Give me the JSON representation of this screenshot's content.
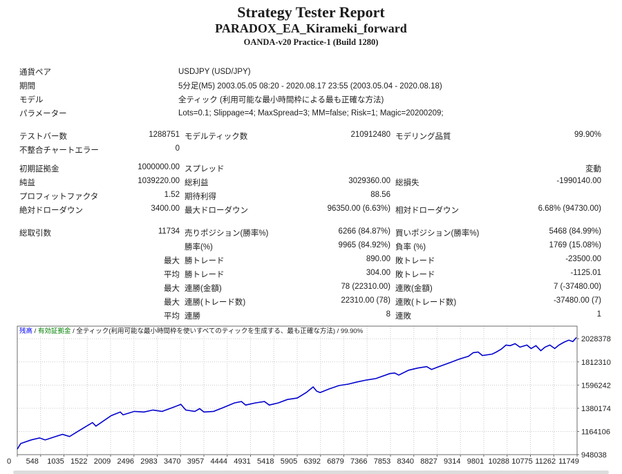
{
  "header": {
    "title": "Strategy Tester Report",
    "ea_name": "PARADOX_EA_Kirameki_forward",
    "server": "OANDA-v20 Practice-1 (Build 1280)"
  },
  "report": {
    "sections": [
      {
        "rows": [
          {
            "wide": true,
            "label": "通貨ペア",
            "value": "USDJPY (USD/JPY)"
          },
          {
            "wide": true,
            "label": "期間",
            "value": "5分足(M5) 2003.05.05 08:20 - 2020.08.17 23:55 (2003.05.04 - 2020.08.18)"
          },
          {
            "wide": true,
            "label": "モデル",
            "value": "全ティック (利用可能な最小時間枠による最も正確な方法)"
          },
          {
            "wide": true,
            "label": "パラメーター",
            "value": "Lots=0.1; Slippage=4; MaxSpread=3; MM=false; Risk=1; Magic=20200209;"
          }
        ]
      },
      {
        "rows": [
          {
            "cols": [
              [
                "テストバー数",
                "1288751"
              ],
              [
                "モデルティック数",
                "210912480"
              ],
              [
                "モデリング品質",
                "99.90%"
              ]
            ]
          },
          {
            "cols": [
              [
                "不整合チャートエラー",
                "0"
              ],
              [
                "",
                ""
              ],
              [
                "",
                ""
              ]
            ]
          }
        ]
      },
      {
        "rows": [
          {
            "cols": [
              [
                "初期証拠金",
                "1000000.00"
              ],
              [
                "スプレッド",
                ""
              ],
              [
                "",
                "変動"
              ]
            ]
          },
          {
            "cols": [
              [
                "純益",
                "1039220.00"
              ],
              [
                "総利益",
                "3029360.00"
              ],
              [
                "総損失",
                "-1990140.00"
              ]
            ]
          },
          {
            "cols": [
              [
                "プロフィットファクタ",
                "1.52"
              ],
              [
                "期待利得",
                "88.56"
              ],
              [
                "",
                ""
              ]
            ]
          },
          {
            "cols": [
              [
                "絶対ドローダウン",
                "3400.00"
              ],
              [
                "最大ドローダウン",
                "96350.00 (6.63%)"
              ],
              [
                "相対ドローダウン",
                "6.68% (94730.00)"
              ]
            ]
          }
        ]
      },
      {
        "rows": [
          {
            "cols": [
              [
                "総取引数",
                "11734"
              ],
              [
                "売りポジション(勝率%)",
                "6266 (84.87%)"
              ],
              [
                "買いポジション(勝率%)",
                "5468 (84.99%)"
              ]
            ]
          },
          {
            "cols": [
              [
                "",
                ""
              ],
              [
                "勝率(%)",
                "9965 (84.92%)"
              ],
              [
                "負率 (%)",
                "1769 (15.08%)"
              ]
            ]
          },
          {
            "cols": [
              [
                "",
                "最大"
              ],
              [
                "勝トレード",
                "890.00"
              ],
              [
                "敗トレード",
                "-23500.00"
              ]
            ]
          },
          {
            "cols": [
              [
                "",
                "平均"
              ],
              [
                "勝トレード",
                "304.00"
              ],
              [
                "敗トレード",
                "-1125.01"
              ]
            ]
          },
          {
            "cols": [
              [
                "",
                "最大"
              ],
              [
                "連勝(金額)",
                "78 (22310.00)"
              ],
              [
                "連敗(金額)",
                "7 (-37480.00)"
              ]
            ]
          },
          {
            "cols": [
              [
                "",
                "最大"
              ],
              [
                "連勝(トレード数)",
                "22310.00 (78)"
              ],
              [
                "連敗(トレード数)",
                "-37480.00 (7)"
              ]
            ]
          },
          {
            "cols": [
              [
                "",
                "平均"
              ],
              [
                "連勝",
                "8"
              ],
              [
                "連敗",
                "1"
              ]
            ]
          }
        ]
      }
    ]
  },
  "chart_data": {
    "type": "line",
    "title": "",
    "xlabel": "",
    "ylabel": "",
    "grid": true,
    "legend_position": "top-left",
    "legend_segments": [
      {
        "text": "残高",
        "color": "#0000ff"
      },
      {
        "text": " / ",
        "color": "#1c1c1c"
      },
      {
        "text": "有効証拠金",
        "color": "#007f00"
      },
      {
        "text": " / 全ティック(利用可能な最小時間枠を使いすべてのティックを生成する、最も正確な方法) / ",
        "color": "#1c1c1c"
      },
      {
        "text": "99.90%",
        "color": "#1c1c1c"
      }
    ],
    "line_color": "#0202cd",
    "grid_color": "#c6c6c6",
    "border_color": "#6b6b6b",
    "xlim": [
      0,
      11749
    ],
    "ylim": [
      948038,
      2145500
    ],
    "x_ticks": [
      "0",
      "548",
      "1035",
      "1522",
      "2009",
      "2496",
      "2983",
      "3470",
      "3957",
      "4444",
      "4931",
      "5418",
      "5905",
      "6392",
      "6879",
      "7366",
      "7853",
      "8340",
      "8827",
      "9314",
      "9801",
      "10288",
      "10775",
      "11262",
      "11749"
    ],
    "y_ticks": [
      "2028378",
      "1812310",
      "1596242",
      "1380174",
      "1164106",
      "948038"
    ],
    "series": [
      {
        "name": "残高",
        "points": [
          [
            0,
            1000000
          ],
          [
            73,
            1052000
          ],
          [
            292,
            1085000
          ],
          [
            468,
            1104000
          ],
          [
            584,
            1085000
          ],
          [
            803,
            1117000
          ],
          [
            950,
            1137000
          ],
          [
            1096,
            1117000
          ],
          [
            1286,
            1169000
          ],
          [
            1578,
            1247000
          ],
          [
            1651,
            1214000
          ],
          [
            1972,
            1312000
          ],
          [
            2162,
            1345000
          ],
          [
            2221,
            1319000
          ],
          [
            2455,
            1351000
          ],
          [
            2659,
            1345000
          ],
          [
            2849,
            1364000
          ],
          [
            3039,
            1351000
          ],
          [
            3244,
            1384000
          ],
          [
            3434,
            1417000
          ],
          [
            3536,
            1364000
          ],
          [
            3726,
            1351000
          ],
          [
            3828,
            1377000
          ],
          [
            3916,
            1345000
          ],
          [
            4120,
            1351000
          ],
          [
            4310,
            1384000
          ],
          [
            4559,
            1430000
          ],
          [
            4705,
            1443000
          ],
          [
            4792,
            1410000
          ],
          [
            4997,
            1430000
          ],
          [
            5187,
            1443000
          ],
          [
            5289,
            1410000
          ],
          [
            5479,
            1430000
          ],
          [
            5669,
            1462000
          ],
          [
            5874,
            1475000
          ],
          [
            6064,
            1527000
          ],
          [
            6210,
            1579000
          ],
          [
            6283,
            1540000
          ],
          [
            6356,
            1527000
          ],
          [
            6546,
            1560000
          ],
          [
            6751,
            1592000
          ],
          [
            6941,
            1605000
          ],
          [
            7131,
            1625000
          ],
          [
            7335,
            1644000
          ],
          [
            7525,
            1657000
          ],
          [
            7817,
            1703000
          ],
          [
            7920,
            1709000
          ],
          [
            8007,
            1690000
          ],
          [
            8212,
            1735000
          ],
          [
            8402,
            1755000
          ],
          [
            8592,
            1768000
          ],
          [
            8694,
            1742000
          ],
          [
            8884,
            1774000
          ],
          [
            9089,
            1807000
          ],
          [
            9279,
            1839000
          ],
          [
            9469,
            1865000
          ],
          [
            9571,
            1898000
          ],
          [
            9673,
            1904000
          ],
          [
            9761,
            1872000
          ],
          [
            9966,
            1885000
          ],
          [
            10053,
            1904000
          ],
          [
            10155,
            1930000
          ],
          [
            10258,
            1969000
          ],
          [
            10345,
            1963000
          ],
          [
            10448,
            1982000
          ],
          [
            10550,
            1950000
          ],
          [
            10696,
            1969000
          ],
          [
            10784,
            1937000
          ],
          [
            10886,
            1963000
          ],
          [
            10988,
            1917000
          ],
          [
            11076,
            1950000
          ],
          [
            11178,
            1969000
          ],
          [
            11280,
            1937000
          ],
          [
            11368,
            1969000
          ],
          [
            11470,
            1995000
          ],
          [
            11573,
            2015000
          ],
          [
            11660,
            2002000
          ],
          [
            11734,
            2039220
          ]
        ]
      }
    ]
  }
}
